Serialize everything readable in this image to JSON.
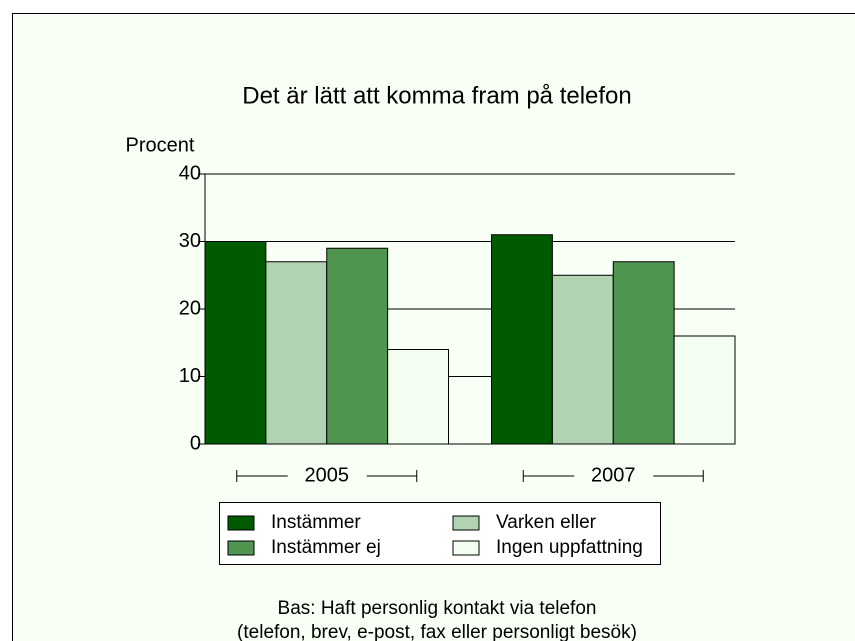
{
  "chart_data": {
    "type": "bar",
    "title": "Det är lätt att komma fram på telefon",
    "ylabel": "Procent",
    "categories": [
      "2005",
      "2007"
    ],
    "series": [
      {
        "name": "Instämmer",
        "color": "#005a00",
        "values": [
          30,
          31
        ]
      },
      {
        "name": "Varken eller",
        "color": "#b2d3b2",
        "values": [
          27,
          25
        ]
      },
      {
        "name": "Instämmer ej",
        "color": "#4f944f",
        "values": [
          29,
          27
        ]
      },
      {
        "name": "Ingen uppfattning",
        "color": "#f2fff0",
        "values": [
          14,
          16
        ]
      }
    ],
    "ylim": [
      0,
      40
    ],
    "yticks": [
      0,
      10,
      20,
      30,
      40
    ],
    "grid": true,
    "legend": "bottom",
    "footnote": [
      "Bas: Haft personlig kontakt via telefon",
      "(telefon, brev, e-post, fax eller personligt besök)"
    ]
  }
}
